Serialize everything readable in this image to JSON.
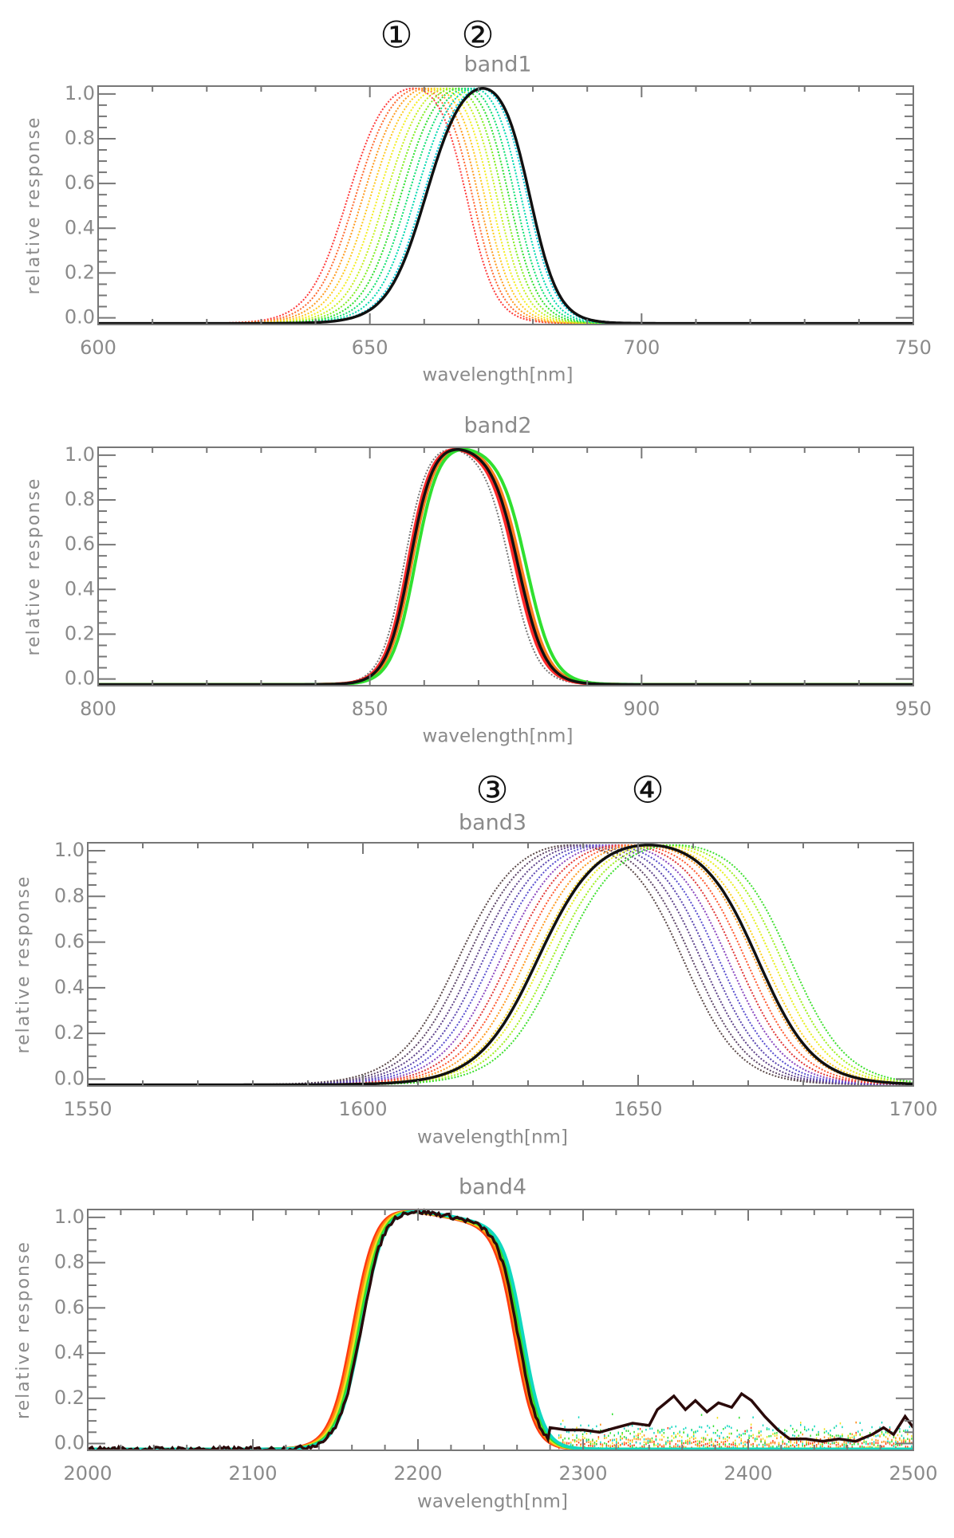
{
  "chart_data": [
    {
      "type": "line",
      "title": "band1",
      "xlabel": "wavelength[nm]",
      "ylabel": "relative response",
      "xlim": [
        600,
        750
      ],
      "ylim": [
        -0.03,
        1.035
      ],
      "xticks": [
        600,
        650,
        700,
        750
      ],
      "yticks": [
        0.0,
        0.2,
        0.4,
        0.6,
        0.8,
        1.0
      ],
      "ytick_labels": [
        "0.0",
        "0.2",
        "0.4",
        "0.6",
        "0.8",
        "1.0"
      ],
      "annotations": [
        "①",
        "②"
      ],
      "edge_width": [
        3.6,
        2.6
      ],
      "tilt": 0.04,
      "family": {
        "colors": [
          "#ff3b3b",
          "#ff6a30",
          "#ff9a20",
          "#ffc820",
          "#f4ee20",
          "#c8f020",
          "#80ee20",
          "#30e030",
          "#10e070",
          "#00d8b0",
          "#00c8d8"
        ],
        "rise": [
          646,
          660
        ],
        "fall": [
          668,
          679
        ]
      },
      "reference": {
        "color": "#111111",
        "rise": 660.5,
        "fall": 679.5
      }
    },
    {
      "type": "line",
      "title": "band2",
      "xlabel": "wavelength[nm]",
      "ylabel": "relative response",
      "xlim": [
        800,
        950
      ],
      "ylim": [
        -0.03,
        1.035
      ],
      "xticks": [
        800,
        850,
        900,
        950
      ],
      "yticks": [
        0.0,
        0.2,
        0.4,
        0.6,
        0.8,
        1.0
      ],
      "ytick_labels": [
        "0.0",
        "0.2",
        "0.4",
        "0.6",
        "0.8",
        "1.0"
      ],
      "annotations": [],
      "edge_width": [
        2.2,
        2.4
      ],
      "tilt": 0.1,
      "family": {
        "colors": [
          "#777777",
          "#ff2a2a",
          "#ff7a20",
          "#30e030"
        ],
        "rise": [
          856.5,
          858.5
        ],
        "fall": [
          876,
          879
        ]
      },
      "reference": {
        "color": "#111111",
        "rise": 857.5,
        "fall": 877.5
      }
    },
    {
      "type": "line",
      "title": "band3",
      "xlabel": "wavelength[nm]",
      "ylabel": "relative response",
      "xlim": [
        1550,
        1700
      ],
      "ylim": [
        -0.03,
        1.035
      ],
      "xticks": [
        1550,
        1600,
        1650,
        1700
      ],
      "yticks": [
        0.0,
        0.2,
        0.4,
        0.6,
        0.8,
        1.0
      ],
      "ytick_labels": [
        "0.0",
        "0.2",
        "0.4",
        "0.6",
        "0.8",
        "1.0"
      ],
      "annotations": [
        "③",
        "④"
      ],
      "edge_width": [
        5.5,
        5.0
      ],
      "tilt": 0.05,
      "family": {
        "colors": [
          "#5a4848",
          "#5e4668",
          "#60448a",
          "#5c48b0",
          "#5a50d0",
          "#8a48c0",
          "#e03838",
          "#ff5a30",
          "#ff9a20",
          "#ffd020",
          "#e8f020",
          "#a0f020",
          "#40e030"
        ],
        "rise": [
          1617.5,
          1636
        ],
        "fall": [
          1658.5,
          1678
        ]
      },
      "reference": {
        "color": "#111111",
        "rise": 1632,
        "fall": 1672
      }
    },
    {
      "type": "line",
      "title": "band4",
      "xlabel": "wavelength[nm]",
      "ylabel": "relative response",
      "xlim": [
        2000,
        2500
      ],
      "ylim": [
        -0.03,
        1.035
      ],
      "xticks": [
        2000,
        2100,
        2200,
        2300,
        2400,
        2500
      ],
      "yticks": [
        0.0,
        0.2,
        0.4,
        0.6,
        0.8,
        1.0
      ],
      "ytick_labels": [
        "0.0",
        "0.2",
        "0.4",
        "0.6",
        "0.8",
        "1.0"
      ],
      "annotations": [],
      "edge_width": [
        7,
        6
      ],
      "tilt": 0.12,
      "family": {
        "colors": [
          "#ff3a10",
          "#ff8a10",
          "#f0e020",
          "#30e030",
          "#10d8c0"
        ],
        "rise": [
          2161,
          2166
        ],
        "fall": [
          2259,
          2264
        ]
      },
      "reference": {
        "color": "#2a0a0a",
        "rise": 2166,
        "fall": 2261
      },
      "reference_tail": {
        "x": [
          2280,
          2290,
          2300,
          2310,
          2320,
          2330,
          2340,
          2345,
          2350,
          2355,
          2362,
          2368,
          2375,
          2382,
          2390,
          2396,
          2402,
          2410,
          2418,
          2425,
          2435,
          2445,
          2455,
          2465,
          2475,
          2482,
          2488,
          2495,
          2500
        ],
        "y": [
          0.07,
          0.06,
          0.06,
          0.05,
          0.07,
          0.09,
          0.08,
          0.15,
          0.18,
          0.21,
          0.15,
          0.19,
          0.14,
          0.18,
          0.16,
          0.22,
          0.19,
          0.12,
          0.06,
          0.02,
          0.02,
          0.01,
          0.02,
          0.01,
          0.04,
          0.07,
          0.04,
          0.12,
          0.07
        ]
      }
    }
  ]
}
